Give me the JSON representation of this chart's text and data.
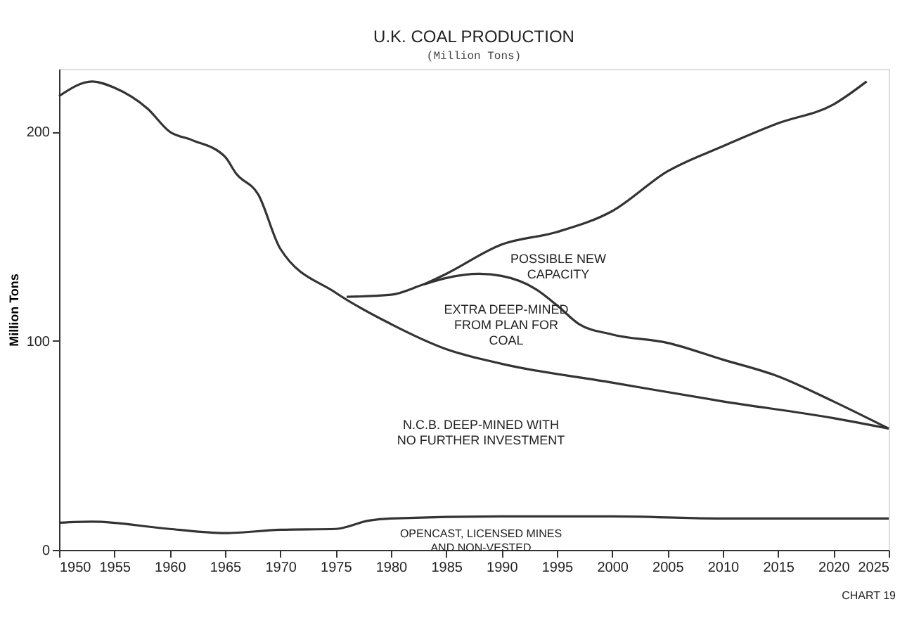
{
  "chart_data": {
    "type": "line",
    "title": "U.K. COAL PRODUCTION",
    "subtitle": "(Million Tons)",
    "ylabel": "Million Tons",
    "xlim": [
      1950,
      2025
    ],
    "xticks": [
      1950,
      1955,
      1960,
      1965,
      1970,
      1975,
      1980,
      1985,
      1990,
      1995,
      2000,
      2005,
      2010,
      2015,
      2020,
      2025
    ],
    "ylim": [
      0,
      230
    ],
    "yticks": [
      0,
      100,
      200
    ],
    "grid": false,
    "marker": "none",
    "line_style": "solid",
    "series": [
      {
        "color": "#333333",
        "x": [
          1950,
          1953,
          1955,
          1958,
          1960,
          1962,
          1965,
          1966,
          1968,
          1970,
          1975,
          1980,
          1985,
          1990,
          2000,
          2010,
          2020,
          2025
        ],
        "values": [
          217,
          224,
          221,
          211,
          200,
          196,
          188,
          180,
          170,
          144,
          123,
          108,
          96,
          89,
          80,
          71,
          63,
          58
        ]
      },
      {
        "color": "#333333",
        "x": [
          1976,
          1980,
          1983,
          1985,
          1988,
          1990,
          1993,
          1995,
          1997,
          2000,
          2005,
          2010,
          2015,
          2020,
          2025
        ],
        "values": [
          121,
          122,
          127,
          130,
          132,
          131,
          125,
          117,
          108,
          103,
          99,
          91,
          83,
          71,
          58
        ]
      },
      {
        "color": "#333333",
        "x": [
          1983,
          1985,
          1990,
          1995,
          2000,
          2005,
          2010,
          2015,
          2020,
          2023
        ],
        "values": [
          127,
          132,
          146,
          152,
          162,
          181,
          193,
          204,
          213,
          224
        ]
      },
      {
        "color": "#333333",
        "x": [
          1950,
          1953,
          1960,
          1965,
          1970,
          1975,
          1978,
          1980,
          1990,
          2000,
          2010,
          2025
        ],
        "values": [
          13,
          13.5,
          10,
          8,
          9.6,
          10,
          14,
          15,
          16,
          16,
          15,
          15
        ]
      }
    ],
    "annotations": [
      "POSSIBLE NEW\nCAPACITY",
      "EXTRA DEEP-MINED\nFROM PLAN FOR\nCOAL",
      "N.C.B. DEEP-MINED WITH\nNO FURTHER INVESTMENT",
      "OPENCAST, LICENSED MINES\nAND NON-VESTED",
      "CHART 19"
    ]
  }
}
